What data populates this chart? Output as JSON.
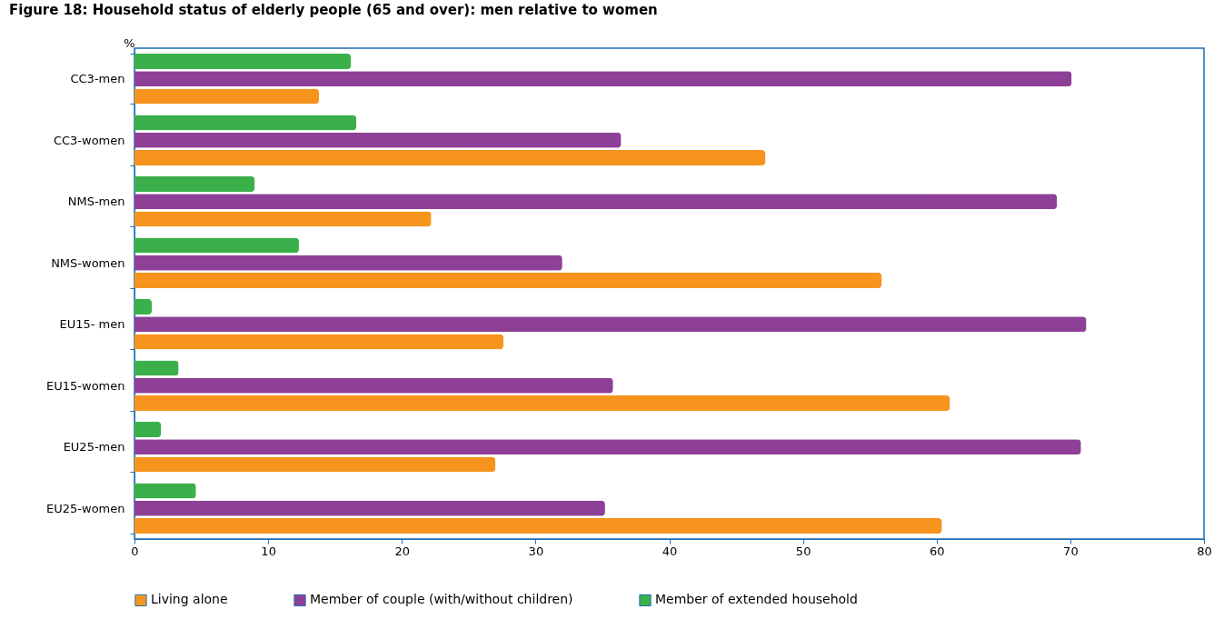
{
  "chart_data": {
    "type": "bar",
    "orientation": "horizontal",
    "title": "Figure 18: Household status of elderly people (65 and over): men relative to women",
    "xlabel": "%",
    "categories": [
      "CC3-men",
      "CC3-women",
      "NMS-men",
      "NMS-women",
      "EU15- men",
      "EU15-women",
      "EU25-men",
      "EU25-women"
    ],
    "series": [
      {
        "name": "Living alone",
        "color": "#f7941d",
        "values": [
          13.8,
          47.2,
          22.2,
          55.9,
          27.6,
          61.0,
          27.0,
          60.4
        ]
      },
      {
        "name": "Member of couple (with/without children)",
        "color": "#8e3f96",
        "values": [
          70.1,
          36.4,
          69.0,
          32.0,
          71.2,
          35.8,
          70.8,
          35.2
        ]
      },
      {
        "name": "Member of extended household",
        "color": "#3bb04a",
        "values": [
          16.2,
          16.6,
          9.0,
          12.3,
          1.3,
          3.3,
          2.0,
          4.6
        ]
      }
    ],
    "xlim": [
      0,
      80
    ],
    "xticks": [
      0,
      10,
      20,
      30,
      40,
      50,
      60,
      70,
      80
    ],
    "grid": false,
    "legend": "bottom"
  }
}
